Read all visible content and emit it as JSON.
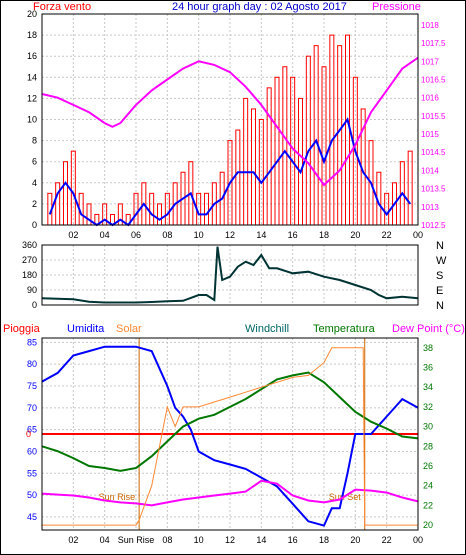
{
  "colors": {
    "wind": "#ff0000",
    "gust": "#0000ff",
    "pressure": "#ff00ff",
    "direction": "#003333",
    "rain": "#ff0000",
    "humidity": "#0000ff",
    "solar": "#ff8833",
    "windchill": "#006666",
    "temperature": "#007700",
    "dewpoint": "#ff00ff",
    "sunmarks": "#cc6600",
    "title": "#0000cc"
  },
  "chart_data": [
    {
      "type": "line",
      "title": "24 hour graph day : 02 Agosto 2017",
      "left_axis_label": "Forza vento",
      "right_axis_label": "Pressione",
      "x_ticks": [
        "02",
        "04",
        "06",
        "08",
        "10",
        "12",
        "14",
        "16",
        "18",
        "20",
        "22",
        "00"
      ],
      "y_left_ticks": [
        "0",
        "2",
        "4",
        "6",
        "8",
        "10",
        "12",
        "14",
        "16",
        "18",
        "20"
      ],
      "y_left_range": [
        0,
        20
      ],
      "y_right_ticks": [
        "1012.5",
        "1013",
        "1013.5",
        "1014",
        "1014.5",
        "1015",
        "1015.5",
        "1016",
        "1016.5",
        "1017",
        "1017.5",
        "1018"
      ],
      "y_right_range": [
        1012.5,
        1018.3
      ],
      "x_range": [
        0,
        24
      ],
      "grid": true,
      "series": [
        {
          "name": "",
          "axis": "left",
          "style": "bars",
          "x": [
            0.5,
            1,
            1.5,
            2,
            2.5,
            3,
            3.5,
            4,
            4.5,
            5,
            5.5,
            6,
            6.5,
            7,
            7.5,
            8,
            8.5,
            9,
            9.5,
            10,
            10.5,
            11,
            11.5,
            12,
            12.5,
            13,
            13.5,
            14,
            14.5,
            15,
            15.5,
            16,
            16.5,
            17,
            17.5,
            18,
            18.5,
            19,
            19.5,
            20,
            20.5,
            21,
            21.5,
            22,
            22.5,
            23,
            23.5
          ],
          "values": [
            3,
            4,
            6,
            7,
            3,
            2,
            1,
            2,
            1,
            2,
            1,
            3,
            4,
            3,
            2,
            3,
            4,
            5,
            6,
            3,
            3,
            4,
            5,
            8,
            9,
            12,
            11,
            10,
            13,
            14,
            15,
            14,
            12,
            16,
            17,
            15,
            18,
            17,
            18,
            14,
            11,
            8,
            5,
            3,
            4,
            6,
            7
          ]
        },
        {
          "name": "",
          "axis": "left",
          "style": "line",
          "x": [
            0.5,
            1,
            1.5,
            2,
            2.5,
            3,
            3.5,
            4,
            4.5,
            5,
            5.5,
            6,
            6.5,
            7,
            7.5,
            8,
            8.5,
            9,
            9.5,
            10,
            10.5,
            11,
            11.5,
            12,
            12.5,
            13,
            13.5,
            14,
            14.5,
            15,
            15.5,
            16,
            16.5,
            17,
            17.5,
            18,
            18.5,
            19,
            19.5,
            20,
            20.5,
            21,
            21.5,
            22,
            22.5,
            23,
            23.5
          ],
          "values": [
            1,
            3,
            4,
            3,
            1,
            0.5,
            0,
            0.5,
            0,
            0.5,
            0,
            1,
            2,
            1,
            0.5,
            1,
            2,
            2.5,
            3,
            1,
            1,
            2,
            2.5,
            4,
            5,
            5,
            5,
            4,
            5,
            6,
            7,
            6,
            5,
            7,
            8,
            6,
            8,
            9,
            10,
            7,
            5,
            4,
            2,
            1,
            2,
            3,
            2
          ]
        },
        {
          "name": "",
          "axis": "right",
          "style": "line",
          "x": [
            0,
            1,
            2,
            3,
            4,
            4.5,
            5,
            6,
            7,
            8,
            9,
            10,
            11,
            12,
            13,
            14,
            15,
            16,
            17,
            18,
            19,
            20,
            21,
            22,
            23,
            24
          ],
          "values": [
            1016.1,
            1016.0,
            1015.8,
            1015.6,
            1015.3,
            1015.2,
            1015.3,
            1015.8,
            1016.2,
            1016.5,
            1016.8,
            1017.0,
            1016.9,
            1016.7,
            1016.3,
            1015.8,
            1015.2,
            1014.6,
            1014.2,
            1013.6,
            1014.0,
            1014.7,
            1015.6,
            1016.2,
            1016.8,
            1017.1
          ]
        }
      ]
    },
    {
      "type": "line",
      "x_range": [
        0,
        24
      ],
      "x_ticks": [
        "02",
        "04",
        "06",
        "08",
        "10",
        "12",
        "14",
        "16",
        "18",
        "20",
        "22",
        "00"
      ],
      "y_left_ticks": [
        "0",
        "90",
        "180",
        "270",
        "360"
      ],
      "y_range": [
        0,
        360
      ],
      "right_labels": [
        "N",
        "W",
        "S",
        "E",
        "N"
      ],
      "grid": true,
      "series": [
        {
          "name": "",
          "x": [
            0,
            1,
            2,
            3,
            4,
            5,
            6,
            7,
            8,
            9,
            10,
            10.5,
            11,
            11.2,
            11.5,
            12,
            12.5,
            13,
            13.5,
            14,
            14.5,
            15,
            16,
            17,
            18,
            19,
            20,
            21,
            21.5,
            22,
            23,
            24
          ],
          "values": [
            40,
            38,
            35,
            20,
            15,
            15,
            15,
            18,
            22,
            25,
            60,
            60,
            30,
            350,
            150,
            170,
            230,
            260,
            240,
            300,
            220,
            220,
            190,
            200,
            170,
            150,
            120,
            90,
            60,
            40,
            50,
            40
          ]
        }
      ]
    },
    {
      "type": "line",
      "labels": [
        "Pioggia",
        "Umidita",
        "Solar",
        "Windchill",
        "Temperatura",
        "Dew Point (°C)"
      ],
      "x_range": [
        0,
        24
      ],
      "x_ticks": [
        "02",
        "04",
        "Sun Rise",
        "08",
        "10",
        "12",
        "14",
        "16",
        "18",
        "20",
        "22",
        "00"
      ],
      "y_left_ticks": [
        "45",
        "50",
        "55",
        "60",
        "65",
        "70",
        "75",
        "80",
        "85"
      ],
      "y_left_range": [
        42,
        86
      ],
      "y_right_ticks": [
        "20",
        "22",
        "24",
        "26",
        "28",
        "30",
        "32",
        "34",
        "36",
        "38"
      ],
      "y_right_range": [
        19.5,
        39
      ],
      "rain_label": "0",
      "rain_value": 0,
      "sun_rise_label": "Sun Rise",
      "sun_set_label": "Sun Set",
      "sun_rise_x": 6.2,
      "sun_set_x": 20.6,
      "grid": true,
      "series": [
        {
          "name": "Umidita",
          "axis": "left",
          "x": [
            0,
            1,
            2,
            3,
            4,
            5,
            6,
            7,
            8,
            8.5,
            9,
            9.5,
            10,
            11,
            12,
            13,
            14,
            15,
            16,
            17,
            18,
            18.5,
            19,
            19.5,
            20,
            21,
            22,
            23,
            24
          ],
          "values": [
            76,
            78,
            82,
            83,
            84,
            84,
            84,
            83,
            75,
            70,
            68,
            65,
            60,
            58,
            57,
            56,
            54,
            52,
            48,
            44,
            43,
            47,
            47,
            55,
            64,
            64,
            68,
            72,
            70
          ]
        },
        {
          "name": "Temperatura",
          "axis": "right",
          "x": [
            0,
            1,
            2,
            3,
            4,
            5,
            6,
            7,
            8,
            9,
            10,
            11,
            12,
            13,
            14,
            15,
            16,
            17,
            18,
            19,
            20,
            21,
            22,
            23,
            24
          ],
          "values": [
            28.0,
            27.5,
            26.8,
            26.0,
            25.8,
            25.5,
            25.8,
            27.0,
            28.5,
            30.0,
            30.8,
            31.2,
            32.0,
            32.8,
            33.8,
            34.8,
            35.2,
            35.5,
            34.5,
            33.0,
            31.5,
            30.5,
            29.8,
            29.0,
            28.8
          ]
        },
        {
          "name": "Dew Point (°C)",
          "axis": "right",
          "x": [
            0,
            1,
            2,
            3,
            4,
            5,
            6,
            7,
            8,
            9,
            10,
            11,
            12,
            13,
            14,
            15,
            16,
            17,
            18,
            19,
            20,
            21,
            22,
            23,
            24
          ],
          "values": [
            23.2,
            23.1,
            23.0,
            22.8,
            22.5,
            22.3,
            22.2,
            22.0,
            22.3,
            22.6,
            22.8,
            23.0,
            23.2,
            23.4,
            24.5,
            24.2,
            23.0,
            22.5,
            22.3,
            22.6,
            23.6,
            23.5,
            23.3,
            22.8,
            22.4
          ]
        },
        {
          "name": "Solar",
          "axis": "right",
          "x": [
            0,
            6,
            6.2,
            7,
            7.5,
            8,
            8.5,
            9,
            10,
            11,
            12,
            13,
            14,
            15,
            16,
            17,
            18,
            18.5,
            19,
            19.5,
            20,
            20.5,
            20.6,
            24
          ],
          "values": [
            20,
            20,
            20.5,
            24,
            28,
            32,
            30,
            32,
            32,
            32.5,
            33,
            33.5,
            34,
            34.5,
            35,
            35.2,
            36.5,
            38,
            38,
            38,
            38,
            38,
            20,
            20
          ]
        }
      ]
    }
  ]
}
